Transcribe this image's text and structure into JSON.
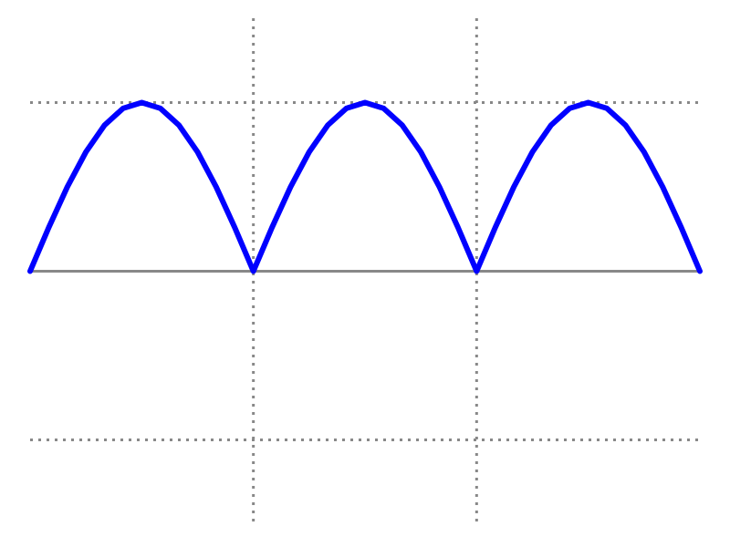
{
  "chart_data": {
    "type": "line",
    "x": [
      0,
      0.0833,
      0.1667,
      0.25,
      0.3333,
      0.4167,
      0.5,
      0.5833,
      0.6667,
      0.75,
      0.8333,
      0.9167,
      1,
      1.0833,
      1.1667,
      1.25,
      1.3333,
      1.4167,
      1.5,
      1.5833,
      1.6667,
      1.75,
      1.8333,
      1.9167,
      2,
      2.0833,
      2.1667,
      2.25,
      2.3333,
      2.4167,
      2.5,
      2.5833,
      2.6667,
      2.75,
      2.8333,
      2.9167,
      3
    ],
    "series": [
      {
        "color": "#0000ff",
        "values": [
          0,
          0.2588,
          0.5,
          0.7071,
          0.866,
          0.9659,
          1,
          0.9659,
          0.866,
          0.7071,
          0.5,
          0.2588,
          0,
          0.2588,
          0.5,
          0.7071,
          0.866,
          0.9659,
          1,
          0.9659,
          0.866,
          0.7071,
          0.5,
          0.2588,
          0,
          0.2588,
          0.5,
          0.7071,
          0.866,
          0.9659,
          1,
          0.9659,
          0.866,
          0.7071,
          0.5,
          0.2588,
          0
        ]
      }
    ],
    "xlim": [
      0,
      3
    ],
    "ylim": [
      -1.5,
      1.5
    ],
    "xticks": [
      1,
      2
    ],
    "yticks": [
      -1,
      1
    ],
    "grid": true
  }
}
